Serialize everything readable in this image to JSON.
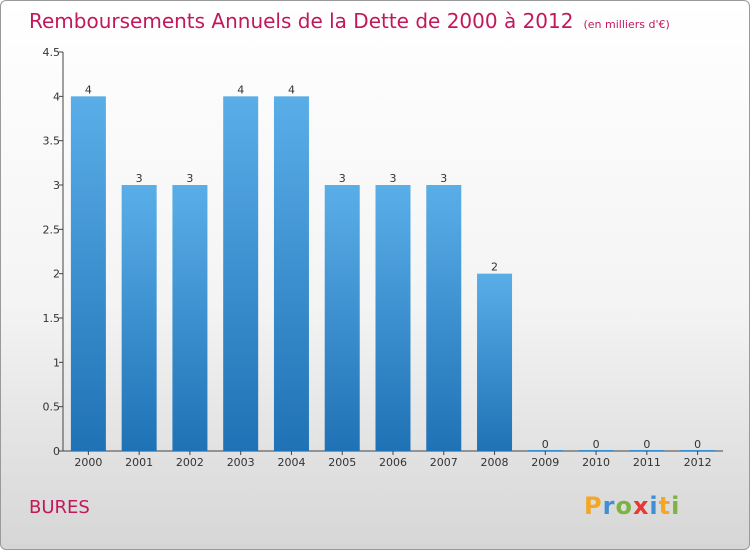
{
  "header": {
    "title": "Remboursements Annuels de la Dette de 2000 à 2012",
    "unit": "(en milliers d'€)"
  },
  "footer": {
    "commune": "BURES",
    "logo": [
      "P",
      "r",
      "o",
      "x",
      "i",
      "t",
      "i"
    ]
  },
  "colors": {
    "title": "#c2185b",
    "bar_top": "#5aaee8",
    "bar_bottom": "#1f72b5",
    "logo": [
      "#f5a623",
      "#3f8fd6",
      "#7cb342",
      "#e53935",
      "#3f8fd6",
      "#f5a623",
      "#7cb342"
    ]
  },
  "chart_data": {
    "type": "bar",
    "title": "Remboursements Annuels de la Dette de 2000 à 2012",
    "xlabel": "",
    "ylabel": "",
    "categories": [
      "2000",
      "2001",
      "2002",
      "2003",
      "2004",
      "2005",
      "2006",
      "2007",
      "2008",
      "2009",
      "2010",
      "2011",
      "2012"
    ],
    "values": [
      4,
      3,
      3,
      4,
      4,
      3,
      3,
      3,
      2,
      0,
      0,
      0,
      0
    ],
    "data_labels": [
      "4",
      "3",
      "3",
      "4",
      "4",
      "3",
      "3",
      "3",
      "2",
      "0",
      "0",
      "0",
      "0"
    ],
    "ylim": [
      0,
      4.5
    ],
    "yticks": [
      0,
      0.5,
      1,
      1.5,
      2,
      2.5,
      3,
      3.5,
      4,
      4.5
    ],
    "ytick_labels": [
      "0",
      "0.5",
      "1",
      "1.5",
      "2",
      "2.5",
      "3",
      "3.5",
      "4",
      "4.5"
    ],
    "grid": false,
    "legend": "none"
  }
}
